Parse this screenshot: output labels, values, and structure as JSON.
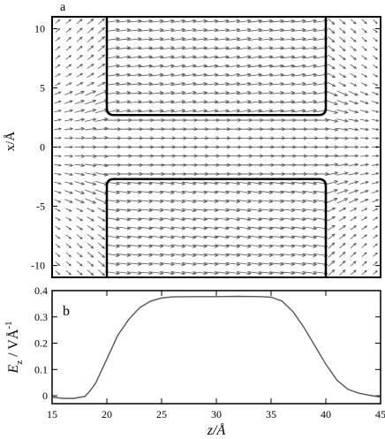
{
  "chart_data": [
    {
      "panel_label": "a",
      "type": "quiver",
      "ylabel": "x/Å",
      "xlim": [
        15,
        45
      ],
      "ylim": [
        -11,
        11
      ],
      "y_ticks": [
        -10,
        -5,
        0,
        5,
        10
      ],
      "walls": [
        {
          "side": "upper",
          "z_start": 20,
          "z_end": 40,
          "x_inner": 2.7,
          "x_outer": 11
        },
        {
          "side": "lower",
          "z_start": 20,
          "z_end": 40,
          "x_inner": -2.7,
          "x_outer": -11
        }
      ],
      "field": {
        "z_range": [
          15.5,
          44.5
        ],
        "x_range": [
          -10.6,
          10.6
        ],
        "description_peak_z_range": [
          20,
          40
        ]
      }
    },
    {
      "panel_label": "b",
      "type": "line",
      "ylabel_main": "E",
      "ylabel_sub": "z",
      "ylabel_rest": " / VÅ",
      "ylabel_sup": "-1",
      "xlabel": "z/Å",
      "xlim": [
        15,
        45
      ],
      "ylim": [
        -0.03,
        0.4
      ],
      "x_ticks": [
        15,
        20,
        25,
        30,
        35,
        40,
        45
      ],
      "y_ticks": [
        0,
        0.1,
        0.2,
        0.3,
        0.4
      ],
      "y_tick_labels": [
        "0",
        "0.1",
        "0.2",
        "0.3",
        "0.4"
      ],
      "series": [
        {
          "x": [
            15,
            16,
            17,
            18,
            18.5,
            19,
            20,
            21,
            22,
            23,
            24,
            25,
            26,
            28,
            30,
            32,
            34,
            35,
            36,
            37,
            38,
            39,
            40,
            41,
            42,
            43,
            44,
            45
          ],
          "y": [
            -0.005,
            -0.01,
            -0.01,
            -0.002,
            0.02,
            0.05,
            0.14,
            0.23,
            0.29,
            0.335,
            0.36,
            0.372,
            0.376,
            0.377,
            0.377,
            0.378,
            0.377,
            0.375,
            0.36,
            0.32,
            0.26,
            0.19,
            0.12,
            0.06,
            0.025,
            0.01,
            0.002,
            -0.005
          ]
        }
      ]
    }
  ]
}
